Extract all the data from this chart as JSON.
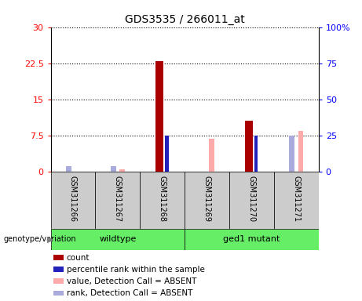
{
  "title": "GDS3535 / 266011_at",
  "samples": [
    "GSM311266",
    "GSM311267",
    "GSM311268",
    "GSM311269",
    "GSM311270",
    "GSM311271"
  ],
  "groups": [
    {
      "label": "wildtype",
      "indices": [
        0,
        1,
        2
      ]
    },
    {
      "label": "ged1 mutant",
      "indices": [
        3,
        4,
        5
      ]
    }
  ],
  "count_values": [
    null,
    null,
    23.0,
    null,
    10.5,
    null
  ],
  "percentile_rank": [
    null,
    null,
    25.0,
    null,
    25.0,
    null
  ],
  "absent_value": [
    null,
    0.5,
    null,
    6.8,
    null,
    8.5
  ],
  "absent_rank_pct": [
    3.5,
    3.5,
    null,
    null,
    null,
    25.0
  ],
  "left_ylim": [
    0,
    30
  ],
  "right_ylim": [
    0,
    100
  ],
  "left_yticks": [
    0,
    7.5,
    15,
    22.5,
    30
  ],
  "right_yticks": [
    0,
    25,
    50,
    75,
    100
  ],
  "left_yticklabels": [
    "0",
    "7.5",
    "15",
    "22.5",
    "30"
  ],
  "right_yticklabels": [
    "0",
    "25",
    "50",
    "75",
    "100%"
  ],
  "color_count": "#AA0000",
  "color_percentile": "#2222BB",
  "color_absent_value": "#FFAAAA",
  "color_absent_rank": "#AAAADD",
  "group_label": "genotype/variation",
  "group_color": "#66EE66",
  "sample_bg": "#CCCCCC",
  "legend_items": [
    {
      "label": "count",
      "color": "#AA0000"
    },
    {
      "label": "percentile rank within the sample",
      "color": "#2222BB"
    },
    {
      "label": "value, Detection Call = ABSENT",
      "color": "#FFAAAA"
    },
    {
      "label": "rank, Detection Call = ABSENT",
      "color": "#AAAADD"
    }
  ]
}
